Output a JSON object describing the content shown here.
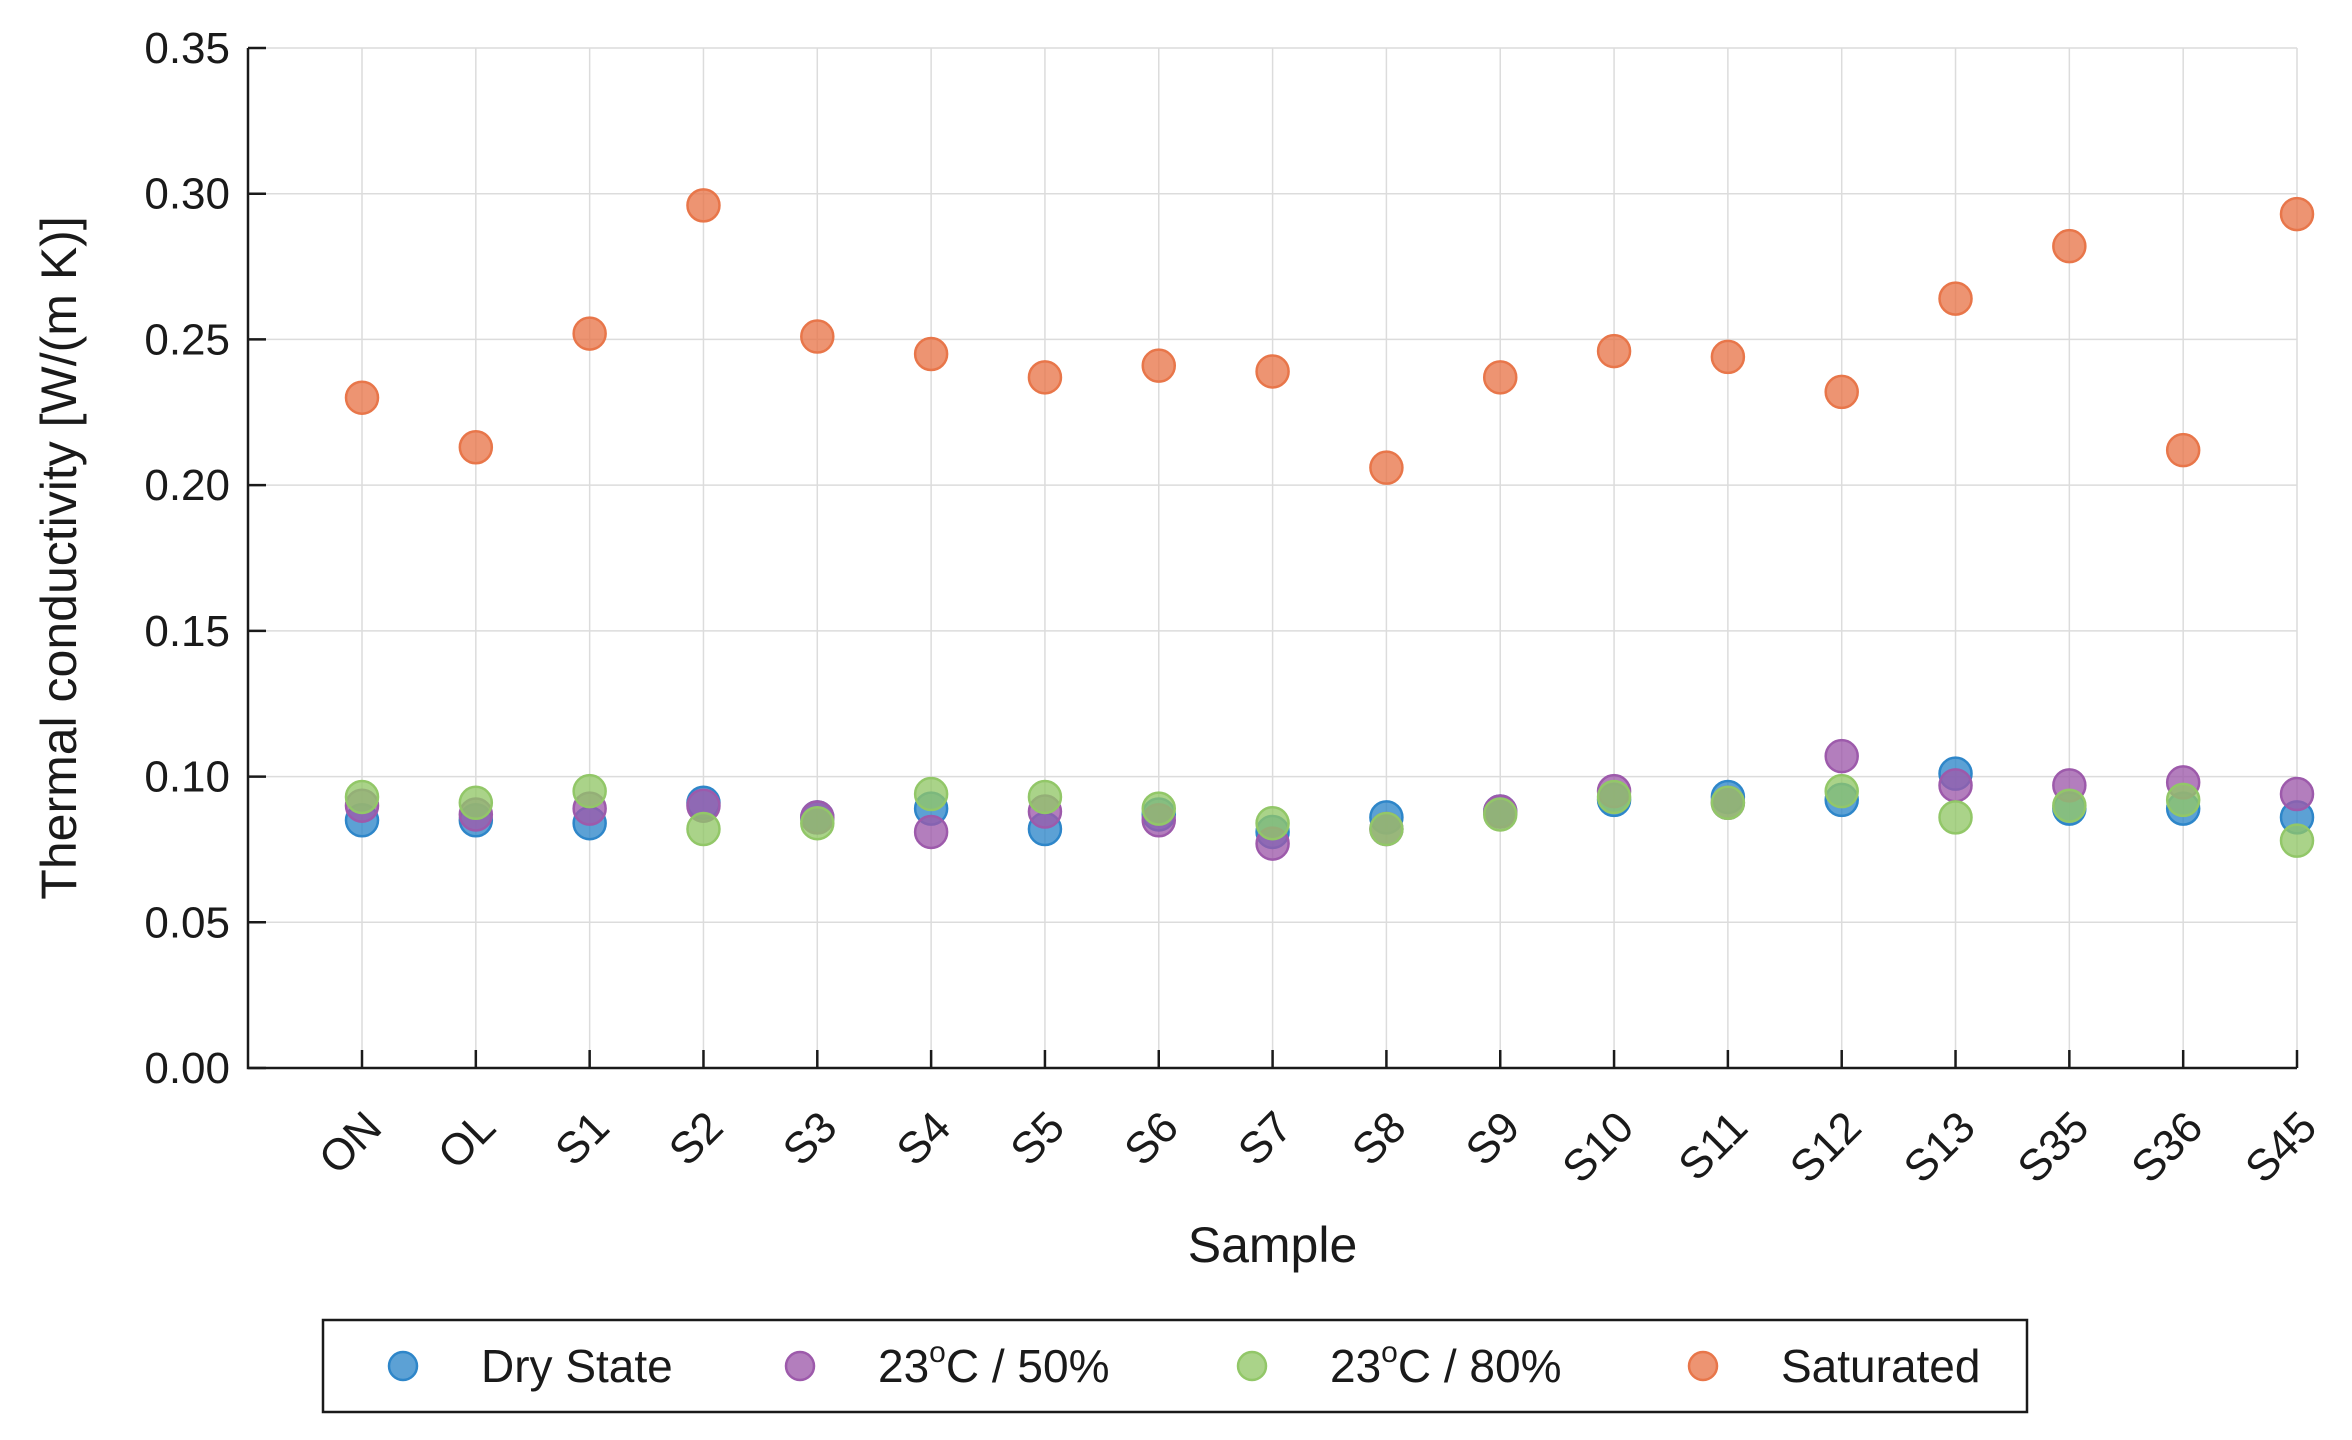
{
  "chart_data": {
    "type": "scatter",
    "xlabel": "Sample",
    "ylabel": "Thermal conductivity [W/(m K)]",
    "ylim": [
      0,
      0.35
    ],
    "yticks": [
      "0.00",
      "0.05",
      "0.10",
      "0.15",
      "0.20",
      "0.25",
      "0.30",
      "0.35"
    ],
    "grid": true,
    "legend_position": "bottom",
    "categories": [
      "ON",
      "OL",
      "S1",
      "S2",
      "S3",
      "S4",
      "S5",
      "S6",
      "S7",
      "S8",
      "S9",
      "S10",
      "S11",
      "S12",
      "S13",
      "S35",
      "S36",
      "S45"
    ],
    "series": [
      {
        "name": "Dry State",
        "label_base": "Dry State",
        "color": "#2e86c9",
        "values": [
          0.085,
          0.085,
          0.084,
          0.091,
          0.086,
          0.089,
          0.082,
          0.087,
          0.081,
          0.086,
          0.088,
          0.092,
          0.093,
          0.092,
          0.101,
          0.089,
          0.089,
          0.086
        ]
      },
      {
        "name": "23°C / 50%",
        "label_base": "23",
        "label_sup": "o",
        "label_rest": "C / 50%",
        "color": "#9d5aab",
        "values": [
          0.09,
          0.087,
          0.089,
          0.09,
          0.086,
          0.081,
          0.088,
          0.085,
          0.077,
          0.082,
          0.088,
          0.095,
          0.091,
          0.107,
          0.097,
          0.097,
          0.098,
          0.094
        ]
      },
      {
        "name": "23°C / 80%",
        "label_base": "23",
        "label_sup": "o",
        "label_rest": "C / 80%",
        "color": "#92c768",
        "values": [
          0.093,
          0.091,
          0.095,
          0.082,
          0.084,
          0.094,
          0.093,
          0.089,
          0.084,
          0.082,
          0.087,
          0.093,
          0.091,
          0.095,
          0.086,
          0.09,
          0.092,
          0.078
        ]
      },
      {
        "name": "Saturated",
        "label_base": "Saturated",
        "color": "#e8764a",
        "values": [
          0.23,
          0.213,
          0.252,
          0.296,
          0.251,
          0.245,
          0.237,
          0.241,
          0.239,
          0.206,
          0.237,
          0.246,
          0.244,
          0.232,
          0.264,
          0.282,
          0.212,
          0.293
        ]
      }
    ]
  }
}
